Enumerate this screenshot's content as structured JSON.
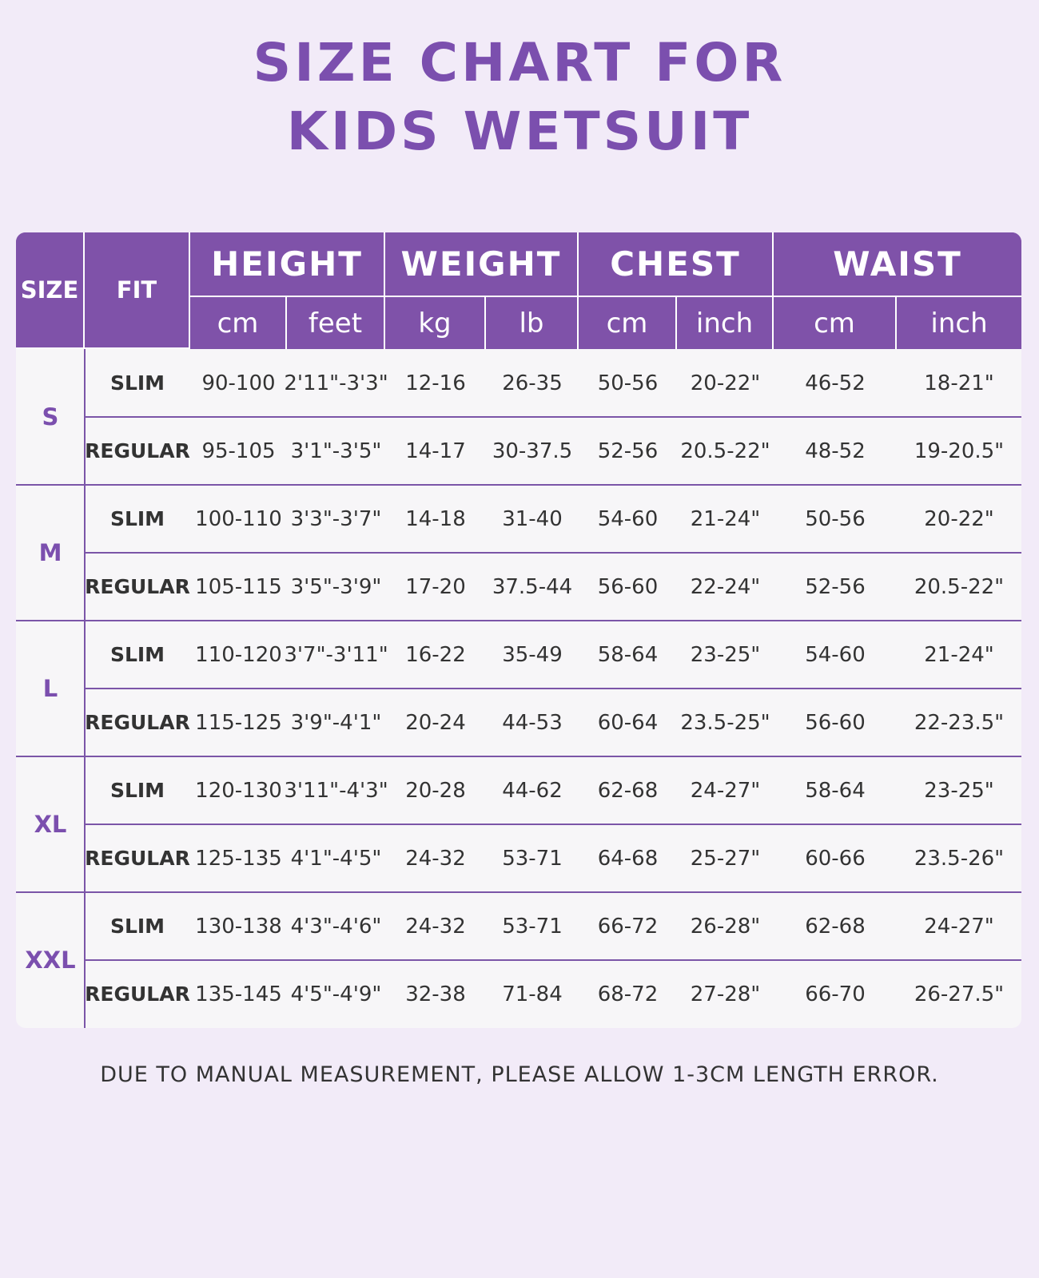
{
  "title": [
    "SIZE CHART FOR",
    "KIDS WETSUIT"
  ],
  "table": {
    "header": {
      "size": "SIZE",
      "fit": "FIT",
      "groups": [
        {
          "label": "HEIGHT",
          "units": [
            "cm",
            "feet"
          ]
        },
        {
          "label": "WEIGHT",
          "units": [
            "kg",
            "lb"
          ]
        },
        {
          "label": "CHEST",
          "units": [
            "cm",
            "inch"
          ]
        },
        {
          "label": "WAIST",
          "units": [
            "cm",
            "inch"
          ]
        }
      ]
    },
    "sizes": [
      {
        "size": "S",
        "rows": [
          {
            "fit": "SLIM",
            "cells": [
              "90-100",
              "2'11\"-3'3\"",
              "12-16",
              "26-35",
              "50-56",
              "20-22\"",
              "46-52",
              "18-21\""
            ]
          },
          {
            "fit": "REGULAR",
            "cells": [
              "95-105",
              "3'1\"-3'5\"",
              "14-17",
              "30-37.5",
              "52-56",
              "20.5-22\"",
              "48-52",
              "19-20.5\""
            ]
          }
        ]
      },
      {
        "size": "M",
        "rows": [
          {
            "fit": "SLIM",
            "cells": [
              "100-110",
              "3'3\"-3'7\"",
              "14-18",
              "31-40",
              "54-60",
              "21-24\"",
              "50-56",
              "20-22\""
            ]
          },
          {
            "fit": "REGULAR",
            "cells": [
              "105-115",
              "3'5\"-3'9\"",
              "17-20",
              "37.5-44",
              "56-60",
              "22-24\"",
              "52-56",
              "20.5-22\""
            ]
          }
        ]
      },
      {
        "size": "L",
        "rows": [
          {
            "fit": "SLIM",
            "cells": [
              "110-120",
              "3'7\"-3'11\"",
              "16-22",
              "35-49",
              "58-64",
              "23-25\"",
              "54-60",
              "21-24\""
            ]
          },
          {
            "fit": "REGULAR",
            "cells": [
              "115-125",
              "3'9\"-4'1\"",
              "20-24",
              "44-53",
              "60-64",
              "23.5-25\"",
              "56-60",
              "22-23.5\""
            ]
          }
        ]
      },
      {
        "size": "XL",
        "rows": [
          {
            "fit": "SLIM",
            "cells": [
              "120-130",
              "3'11\"-4'3\"",
              "20-28",
              "44-62",
              "62-68",
              "24-27\"",
              "58-64",
              "23-25\""
            ]
          },
          {
            "fit": "REGULAR",
            "cells": [
              "125-135",
              "4'1\"-4'5\"",
              "24-32",
              "53-71",
              "64-68",
              "25-27\"",
              "60-66",
              "23.5-26\""
            ]
          }
        ]
      },
      {
        "size": "XXL",
        "rows": [
          {
            "fit": "SLIM",
            "cells": [
              "130-138",
              "4'3\"-4'6\"",
              "24-32",
              "53-71",
              "66-72",
              "26-28\"",
              "62-68",
              "24-27\""
            ]
          },
          {
            "fit": "REGULAR",
            "cells": [
              "135-145",
              "4'5\"-4'9\"",
              "32-38",
              "71-84",
              "68-72",
              "27-28\"",
              "66-70",
              "26-27.5\""
            ]
          }
        ]
      }
    ]
  },
  "note": "DUE TO MANUAL MEASUREMENT, PLEASE ALLOW 1-3CM LENGTH ERROR."
}
